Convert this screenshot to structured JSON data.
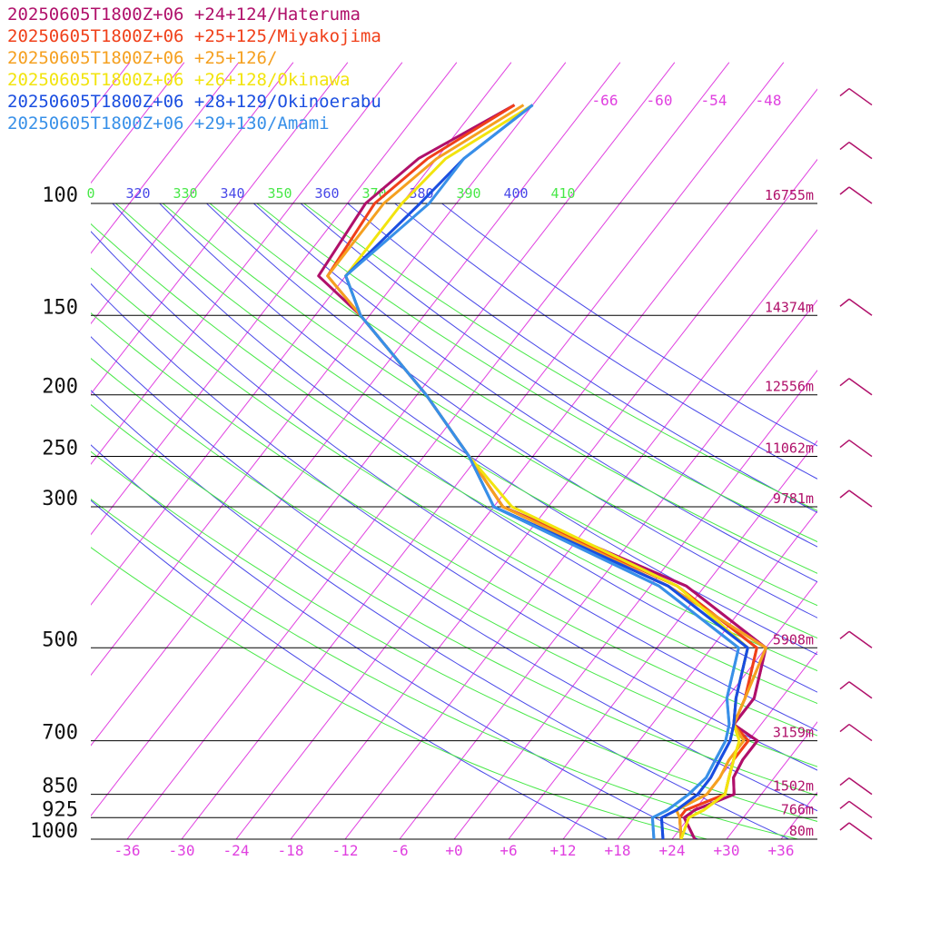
{
  "legend": [
    {
      "label": "20250605T1800Z+06 +24+124/Hateruma",
      "color": "#b0106a"
    },
    {
      "label": "20250605T1800Z+06 +25+125/Miyakojima",
      "color": "#f0401a"
    },
    {
      "label": "20250605T1800Z+06 +25+126/",
      "color": "#f5a020"
    },
    {
      "label": "20250605T1800Z+06 +26+128/Okinawa",
      "color": "#f2e40e"
    },
    {
      "label": "20250605T1800Z+06 +28+129/Okinoerabu",
      "color": "#1a4ee0"
    },
    {
      "label": "20250605T1800Z+06 +29+130/Amami",
      "color": "#3890e8"
    }
  ],
  "colors": {
    "isobar": "#000000",
    "isotherm": "#e040e0",
    "dry_adiabat": "#4848e8",
    "moist_adiabat": "#48e848",
    "height_label": "#b0106a",
    "wind_barb": "#b0106a"
  },
  "chart_data": {
    "type": "line",
    "title": "",
    "xlabel": "",
    "ylabel": "",
    "xlim": [
      -40,
      40
    ],
    "ylim": [
      1000,
      100
    ],
    "y_scale": "log",
    "grid": true,
    "pressure_ticks": [
      {
        "p": 100,
        "label": "100"
      },
      {
        "p": 150,
        "label": "150"
      },
      {
        "p": 200,
        "label": "200"
      },
      {
        "p": 250,
        "label": "250"
      },
      {
        "p": 300,
        "label": "300"
      },
      {
        "p": 500,
        "label": "500"
      },
      {
        "p": 700,
        "label": "700"
      },
      {
        "p": 850,
        "label": "850"
      },
      {
        "p": 925,
        "label": "925"
      },
      {
        "p": 1000,
        "label": "1000"
      }
    ],
    "temperature_ticks": [
      {
        "t": -36,
        "label": "-36"
      },
      {
        "t": -30,
        "label": "-30"
      },
      {
        "t": -24,
        "label": "-24"
      },
      {
        "t": -18,
        "label": "-18"
      },
      {
        "t": -12,
        "label": "-12"
      },
      {
        "t": -6,
        "label": "-6"
      },
      {
        "t": 0,
        "label": "+0"
      },
      {
        "t": 6,
        "label": "+6"
      },
      {
        "t": 12,
        "label": "+12"
      },
      {
        "t": 18,
        "label": "+18"
      },
      {
        "t": 24,
        "label": "+24"
      },
      {
        "t": 30,
        "label": "+30"
      },
      {
        "t": 36,
        "label": "+36"
      }
    ],
    "upper_isotherm_labels": [
      {
        "t": -66,
        "label": "-66"
      },
      {
        "t": -60,
        "label": "-60"
      },
      {
        "t": -54,
        "label": "-54"
      },
      {
        "t": -48,
        "label": "-48"
      }
    ],
    "height_labels": [
      {
        "p": 100,
        "label": "16755m"
      },
      {
        "p": 150,
        "label": "14374m"
      },
      {
        "p": 200,
        "label": "12556m"
      },
      {
        "p": 250,
        "label": "11062m"
      },
      {
        "p": 300,
        "label": "9781m"
      },
      {
        "p": 500,
        "label": "5908m"
      },
      {
        "p": 700,
        "label": "3159m"
      },
      {
        "p": 850,
        "label": "1502m"
      },
      {
        "p": 925,
        "label": "766m"
      },
      {
        "p": 1000,
        "label": "80m"
      }
    ],
    "theta_labels": [
      {
        "label": "0",
        "kind": "moist"
      },
      {
        "label": "320",
        "kind": "dry"
      },
      {
        "label": "330",
        "kind": "moist"
      },
      {
        "label": "340",
        "kind": "dry"
      },
      {
        "label": "350",
        "kind": "moist"
      },
      {
        "label": "360",
        "kind": "dry"
      },
      {
        "label": "370",
        "kind": "moist"
      },
      {
        "label": "380",
        "kind": "dry"
      },
      {
        "label": "390",
        "kind": "moist"
      },
      {
        "label": "400",
        "kind": "dry"
      },
      {
        "label": "410",
        "kind": "moist"
      }
    ],
    "series": [
      {
        "name": "20250605T1800Z+06 +24+124/Hateruma",
        "color": "#b0106a",
        "temperature": [
          [
            1000,
            26.5
          ],
          [
            925,
            23.5
          ],
          [
            900,
            24
          ],
          [
            850,
            27
          ],
          [
            800,
            25.5
          ],
          [
            750,
            25
          ],
          [
            700,
            25
          ],
          [
            660,
            21
          ],
          [
            600,
            21
          ],
          [
            500,
            18
          ],
          [
            400,
            4
          ],
          [
            300,
            -23
          ],
          [
            250,
            -31
          ],
          [
            200,
            -41
          ],
          [
            150,
            -55
          ],
          [
            130,
            -63
          ],
          [
            100,
            -64
          ],
          [
            85,
            -62
          ],
          [
            70,
            -56
          ]
        ],
        "dewpoint": [
          [
            1000,
            26.5
          ],
          [
            925,
            23.5
          ],
          [
            900,
            24
          ],
          [
            850,
            27
          ],
          [
            800,
            25.5
          ],
          [
            750,
            25
          ],
          [
            700,
            25
          ],
          [
            660,
            21
          ],
          [
            600,
            21
          ],
          [
            500,
            18
          ],
          [
            400,
            4
          ],
          [
            300,
            -23
          ]
        ]
      },
      {
        "name": "20250605T1800Z+06 +25+125/Miyakojima",
        "color": "#f0401a",
        "temperature": [
          [
            1000,
            25
          ],
          [
            925,
            23
          ],
          [
            900,
            23
          ],
          [
            850,
            26
          ],
          [
            800,
            25
          ],
          [
            750,
            24
          ],
          [
            700,
            24
          ],
          [
            660,
            21
          ],
          [
            600,
            20
          ],
          [
            500,
            17
          ],
          [
            400,
            3
          ],
          [
            300,
            -23
          ],
          [
            250,
            -31
          ],
          [
            200,
            -41
          ],
          [
            150,
            -55
          ],
          [
            130,
            -62
          ],
          [
            100,
            -63
          ],
          [
            85,
            -61
          ],
          [
            70,
            -56
          ]
        ],
        "dewpoint": [
          [
            1000,
            25
          ],
          [
            925,
            23
          ],
          [
            900,
            23
          ],
          [
            850,
            26
          ],
          [
            800,
            25
          ],
          [
            750,
            24
          ],
          [
            700,
            24
          ],
          [
            660,
            21
          ],
          [
            600,
            20
          ],
          [
            500,
            17
          ],
          [
            400,
            3
          ],
          [
            300,
            -23
          ]
        ]
      },
      {
        "name": "20250605T1800Z+06 +25+126/",
        "color": "#f5a020",
        "temperature": [
          [
            1000,
            25
          ],
          [
            925,
            23
          ],
          [
            900,
            22
          ],
          [
            850,
            24
          ],
          [
            800,
            24
          ],
          [
            750,
            23.5
          ],
          [
            700,
            23.5
          ],
          [
            660,
            21
          ],
          [
            600,
            20
          ],
          [
            500,
            18
          ],
          [
            400,
            2
          ],
          [
            300,
            -23
          ],
          [
            250,
            -31
          ],
          [
            200,
            -41
          ],
          [
            150,
            -55
          ],
          [
            130,
            -62
          ],
          [
            100,
            -62
          ],
          [
            85,
            -60
          ],
          [
            70,
            -55
          ]
        ],
        "dewpoint": [
          [
            1000,
            25
          ],
          [
            925,
            23
          ],
          [
            900,
            22
          ],
          [
            850,
            24
          ],
          [
            800,
            24
          ],
          [
            750,
            23.5
          ],
          [
            700,
            23.5
          ],
          [
            660,
            21
          ],
          [
            600,
            20
          ],
          [
            500,
            18
          ],
          [
            400,
            2
          ],
          [
            300,
            -23
          ]
        ]
      },
      {
        "name": "20250605T1800Z+06 +26+128/Okinawa",
        "color": "#f2e40e",
        "temperature": [
          [
            1000,
            25
          ],
          [
            925,
            24
          ],
          [
            900,
            25
          ],
          [
            850,
            26
          ],
          [
            800,
            25
          ],
          [
            750,
            24
          ],
          [
            700,
            23
          ],
          [
            660,
            21
          ],
          [
            600,
            19
          ],
          [
            500,
            16
          ],
          [
            400,
            3
          ],
          [
            300,
            -22
          ],
          [
            250,
            -31
          ],
          [
            200,
            -41
          ],
          [
            150,
            -55
          ],
          [
            130,
            -60
          ],
          [
            100,
            -60
          ],
          [
            85,
            -59
          ],
          [
            70,
            -54
          ]
        ],
        "dewpoint": [
          [
            1000,
            25
          ],
          [
            925,
            24
          ],
          [
            900,
            25
          ],
          [
            850,
            26
          ],
          [
            800,
            25
          ],
          [
            750,
            24
          ],
          [
            700,
            23
          ],
          [
            660,
            21
          ],
          [
            600,
            19
          ],
          [
            500,
            16
          ],
          [
            400,
            3
          ],
          [
            300,
            -22
          ]
        ]
      },
      {
        "name": "20250605T1800Z+06 +28+129/Okinoerabu",
        "color": "#1a4ee0",
        "temperature": [
          [
            1000,
            23
          ],
          [
            925,
            21
          ],
          [
            900,
            22
          ],
          [
            850,
            23
          ],
          [
            800,
            23
          ],
          [
            750,
            22.5
          ],
          [
            700,
            22
          ],
          [
            660,
            21
          ],
          [
            600,
            19
          ],
          [
            500,
            16
          ],
          [
            400,
            2
          ],
          [
            300,
            -24
          ],
          [
            250,
            -31
          ],
          [
            200,
            -41
          ],
          [
            150,
            -55
          ],
          [
            130,
            -60
          ],
          [
            100,
            -58
          ],
          [
            85,
            -57
          ],
          [
            70,
            -54
          ]
        ],
        "dewpoint": [
          [
            1000,
            23
          ],
          [
            925,
            21
          ],
          [
            900,
            22
          ],
          [
            850,
            23
          ],
          [
            800,
            23
          ],
          [
            750,
            22.5
          ],
          [
            700,
            22
          ],
          [
            660,
            21
          ],
          [
            600,
            19
          ],
          [
            500,
            16
          ],
          [
            400,
            2
          ],
          [
            300,
            -24
          ]
        ]
      },
      {
        "name": "20250605T1800Z+06 +29+130/Amami",
        "color": "#3890e8",
        "temperature": [
          [
            1000,
            22
          ],
          [
            925,
            20
          ],
          [
            900,
            21
          ],
          [
            850,
            22
          ],
          [
            800,
            22.5
          ],
          [
            750,
            22
          ],
          [
            700,
            21.5
          ],
          [
            660,
            20.5
          ],
          [
            600,
            18
          ],
          [
            500,
            15
          ],
          [
            400,
            1
          ],
          [
            300,
            -24
          ],
          [
            250,
            -31
          ],
          [
            200,
            -41
          ],
          [
            150,
            -55
          ],
          [
            130,
            -60
          ],
          [
            100,
            -57
          ],
          [
            85,
            -57
          ],
          [
            70,
            -54
          ]
        ],
        "dewpoint": [
          [
            1000,
            22
          ],
          [
            925,
            20
          ],
          [
            900,
            21
          ],
          [
            850,
            22
          ],
          [
            800,
            22.5
          ],
          [
            750,
            22
          ],
          [
            700,
            21.5
          ],
          [
            660,
            20.5
          ],
          [
            600,
            18
          ],
          [
            500,
            15
          ],
          [
            400,
            1
          ],
          [
            300,
            -24
          ]
        ]
      }
    ],
    "wind_barbs": [
      {
        "p": 1000
      },
      {
        "p": 925
      },
      {
        "p": 850
      },
      {
        "p": 700
      },
      {
        "p": 600
      },
      {
        "p": 500
      },
      {
        "p": 300
      },
      {
        "p": 250
      },
      {
        "p": 200
      },
      {
        "p": 150
      },
      {
        "p": 100
      },
      {
        "p": 85
      },
      {
        "p": 70
      }
    ]
  }
}
